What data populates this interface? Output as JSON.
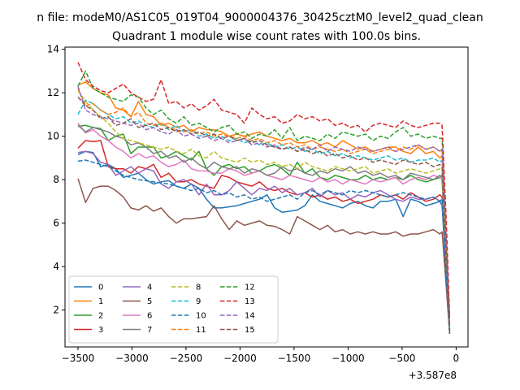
{
  "window_title": "n file: modeM0/AS1C05_019T04_9000004376_30425cztM0_level2_quad_clean",
  "chart_data": {
    "type": "line",
    "title": "Quadrant 1 module wise count rates with 100.0s bins.",
    "xlabel": "",
    "ylabel": "",
    "x_offset_label": "+3.587e8",
    "xlim": [
      -3620,
      110
    ],
    "ylim": [
      0.3,
      14.1
    ],
    "xticks": [
      -3500,
      -3000,
      -2500,
      -2000,
      -1500,
      -1000,
      -500,
      0
    ],
    "xtick_labels": [
      "−3500",
      "−3000",
      "−2500",
      "−2000",
      "−1500",
      "−1000",
      "−500",
      "0"
    ],
    "yticks": [
      2,
      4,
      6,
      8,
      10,
      12,
      14
    ],
    "ytick_labels": [
      "2",
      "4",
      "6",
      "8",
      "10",
      "12",
      "14"
    ],
    "grid": false,
    "legend_position": "lower-left",
    "x": [
      -3500,
      -3430,
      -3360,
      -3290,
      -3220,
      -3150,
      -3080,
      -3010,
      -2940,
      -2870,
      -2800,
      -2730,
      -2660,
      -2590,
      -2520,
      -2450,
      -2380,
      -2310,
      -2240,
      -2170,
      -2100,
      -2030,
      -1960,
      -1890,
      -1820,
      -1750,
      -1680,
      -1610,
      -1540,
      -1470,
      -1400,
      -1330,
      -1260,
      -1190,
      -1120,
      -1050,
      -980,
      -910,
      -840,
      -770,
      -700,
      -630,
      -560,
      -490,
      -420,
      -350,
      -280,
      -210,
      -150,
      -130,
      -90,
      -60
    ],
    "series": [
      {
        "name": "0",
        "color": "#1f77b4",
        "dash": "solid",
        "values": [
          9.15,
          9.3,
          9.25,
          8.6,
          8.7,
          8.5,
          8.1,
          8.2,
          8.3,
          8.0,
          7.8,
          7.9,
          7.95,
          7.7,
          7.6,
          7.8,
          7.6,
          7.1,
          6.7,
          6.7,
          6.75,
          6.8,
          6.9,
          7.0,
          7.1,
          7.3,
          6.7,
          6.5,
          6.55,
          6.6,
          6.8,
          7.3,
          7.0,
          6.9,
          6.8,
          6.7,
          6.9,
          7.0,
          6.8,
          6.7,
          7.0,
          7.0,
          7.1,
          6.3,
          7.1,
          7.0,
          6.8,
          6.9,
          7.0,
          6.8,
          3.5,
          0.9
        ]
      },
      {
        "name": "1",
        "color": "#ff7f0e",
        "dash": "solid",
        "values": [
          12.35,
          12.5,
          12.2,
          12.0,
          11.9,
          11.3,
          11.2,
          10.9,
          11.6,
          11.0,
          10.9,
          10.5,
          10.6,
          10.4,
          10.5,
          10.2,
          10.4,
          10.3,
          10.3,
          10.2,
          10.0,
          10.1,
          10.0,
          10.1,
          10.2,
          10.0,
          9.9,
          9.8,
          9.9,
          9.7,
          9.7,
          9.8,
          9.6,
          9.7,
          9.5,
          9.8,
          9.6,
          9.4,
          9.5,
          9.3,
          9.4,
          9.5,
          9.5,
          9.3,
          9.2,
          9.5,
          9.2,
          9.3,
          9.0,
          9.1,
          5.0,
          1.0
        ]
      },
      {
        "name": "2",
        "color": "#2ca02c",
        "dash": "solid",
        "values": [
          10.45,
          10.5,
          10.4,
          10.35,
          9.8,
          10.0,
          10.1,
          9.2,
          9.5,
          9.5,
          9.5,
          9.0,
          9.1,
          9.3,
          9.1,
          8.9,
          9.3,
          8.5,
          8.2,
          8.6,
          8.7,
          8.5,
          8.6,
          8.3,
          8.4,
          8.6,
          8.7,
          8.5,
          8.2,
          8.8,
          8.3,
          8.5,
          8.1,
          8.0,
          8.2,
          8.1,
          8.0,
          8.0,
          8.2,
          8.0,
          8.1,
          8.0,
          8.1,
          8.0,
          8.2,
          8.0,
          7.9,
          8.0,
          8.1,
          8.2,
          4.0,
          1.0
        ]
      },
      {
        "name": "3",
        "color": "#d62728",
        "dash": "solid",
        "values": [
          9.45,
          9.8,
          9.75,
          9.8,
          8.6,
          8.5,
          8.5,
          8.3,
          8.6,
          8.5,
          8.7,
          8.1,
          8.3,
          7.9,
          7.9,
          8.0,
          7.8,
          7.7,
          7.6,
          8.2,
          8.1,
          7.9,
          7.8,
          7.7,
          7.9,
          7.6,
          7.5,
          7.6,
          7.4,
          7.3,
          7.4,
          7.2,
          7.3,
          7.1,
          7.2,
          7.0,
          7.1,
          6.9,
          7.0,
          7.1,
          7.3,
          7.2,
          7.3,
          7.1,
          7.4,
          7.2,
          7.0,
          7.1,
          7.3,
          7.2,
          3.5,
          1.1
        ]
      },
      {
        "name": "4",
        "color": "#9467bd",
        "dash": "solid",
        "values": [
          9.25,
          9.3,
          9.2,
          8.8,
          8.7,
          8.2,
          8.4,
          8.6,
          8.3,
          8.5,
          8.4,
          7.8,
          7.6,
          7.9,
          8.0,
          7.8,
          7.3,
          7.8,
          7.3,
          7.3,
          7.5,
          7.9,
          7.6,
          7.3,
          7.6,
          7.5,
          7.7,
          7.4,
          7.6,
          7.3,
          7.4,
          7.6,
          7.2,
          7.5,
          7.3,
          7.4,
          7.1,
          7.3,
          7.2,
          7.4,
          7.5,
          7.3,
          7.1,
          7.0,
          7.2,
          7.1,
          7.1,
          7.2,
          7.0,
          7.1,
          3.5,
          1.0
        ]
      },
      {
        "name": "5",
        "color": "#8c564b",
        "dash": "solid",
        "values": [
          8.05,
          6.95,
          7.6,
          7.7,
          7.7,
          7.5,
          7.2,
          6.7,
          6.6,
          6.8,
          6.55,
          6.7,
          6.3,
          6.0,
          6.2,
          6.2,
          6.25,
          6.3,
          6.8,
          6.2,
          5.7,
          6.1,
          5.9,
          6.0,
          6.1,
          5.9,
          5.85,
          5.7,
          5.5,
          6.3,
          6.1,
          5.9,
          5.7,
          5.9,
          5.6,
          5.7,
          5.5,
          5.6,
          5.5,
          5.6,
          5.5,
          5.5,
          5.6,
          5.4,
          5.5,
          5.5,
          5.6,
          5.7,
          5.5,
          5.6,
          3.0,
          0.9
        ]
      },
      {
        "name": "6",
        "color": "#e377c2",
        "dash": "solid",
        "values": [
          10.6,
          10.15,
          10.3,
          10.0,
          9.8,
          9.5,
          9.3,
          9.0,
          9.2,
          9.0,
          9.1,
          8.8,
          8.6,
          8.7,
          8.9,
          8.5,
          8.4,
          8.4,
          8.3,
          8.3,
          8.5,
          8.4,
          8.2,
          8.3,
          8.4,
          8.2,
          8.1,
          8.0,
          8.2,
          8.1,
          8.0,
          7.9,
          8.1,
          7.9,
          8.0,
          7.8,
          8.0,
          7.9,
          7.8,
          8.0,
          7.9,
          8.0,
          8.1,
          7.8,
          8.0,
          8.1,
          8.0,
          8.2,
          8.1,
          8.0,
          4.0,
          1.0
        ]
      },
      {
        "name": "7",
        "color": "#7f7f7f",
        "dash": "solid",
        "values": [
          10.5,
          10.2,
          10.4,
          10.3,
          10.2,
          10.0,
          9.9,
          9.6,
          9.7,
          9.5,
          9.2,
          9.3,
          9.0,
          9.1,
          8.8,
          9.0,
          8.7,
          8.5,
          8.8,
          8.6,
          8.5,
          8.6,
          8.3,
          8.5,
          8.4,
          8.2,
          8.3,
          8.6,
          8.4,
          8.5,
          8.3,
          8.2,
          8.4,
          8.3,
          8.5,
          8.4,
          8.6,
          8.3,
          8.4,
          8.2,
          8.3,
          8.1,
          8.2,
          8.0,
          8.3,
          8.2,
          8.1,
          8.0,
          8.2,
          8.1,
          4.0,
          1.1
        ]
      },
      {
        "name": "8",
        "color": "#bcbd22",
        "dash": "dashed",
        "values": [
          12.1,
          11.6,
          11.2,
          10.9,
          10.6,
          10.2,
          9.9,
          9.8,
          9.7,
          9.6,
          9.5,
          9.4,
          9.5,
          9.3,
          9.2,
          9.4,
          9.1,
          9.0,
          9.3,
          9.0,
          8.9,
          8.8,
          9.0,
          8.8,
          8.9,
          8.7,
          8.8,
          8.6,
          8.7,
          8.5,
          8.8,
          8.6,
          8.5,
          8.4,
          8.6,
          8.5,
          8.4,
          8.5,
          8.6,
          8.3,
          8.4,
          8.5,
          8.3,
          8.4,
          8.5,
          8.4,
          8.3,
          8.4,
          8.5,
          8.4,
          4.5,
          1.2
        ]
      },
      {
        "name": "9",
        "color": "#17becf",
        "dash": "dashed",
        "values": [
          11.0,
          11.65,
          11.5,
          11.2,
          11.0,
          10.8,
          10.9,
          10.6,
          10.7,
          10.5,
          10.4,
          10.6,
          10.3,
          10.5,
          10.2,
          10.3,
          10.0,
          10.1,
          9.9,
          10.0,
          9.8,
          9.9,
          9.7,
          9.8,
          9.6,
          9.7,
          9.5,
          9.6,
          9.4,
          9.5,
          9.3,
          9.4,
          9.2,
          9.3,
          9.1,
          9.2,
          9.0,
          9.1,
          9.0,
          8.9,
          9.0,
          9.1,
          8.9,
          9.0,
          8.8,
          8.9,
          8.9,
          9.0,
          8.8,
          8.9,
          4.5,
          1.2
        ]
      },
      {
        "name": "10",
        "color": "#1f77b4",
        "dash": "dashed",
        "values": [
          8.85,
          8.9,
          8.8,
          8.7,
          8.6,
          8.4,
          8.2,
          8.1,
          8.0,
          7.95,
          7.9,
          7.85,
          7.8,
          7.7,
          7.6,
          7.5,
          7.6,
          7.4,
          7.5,
          7.3,
          7.4,
          7.2,
          7.3,
          7.1,
          7.2,
          7.0,
          7.1,
          7.2,
          7.3,
          7.1,
          7.4,
          7.5,
          7.3,
          7.5,
          7.4,
          7.3,
          7.5,
          7.4,
          7.5,
          7.4,
          7.3,
          7.2,
          7.3,
          7.4,
          7.3,
          7.2,
          7.1,
          7.2,
          7.0,
          7.1,
          3.5,
          1.0
        ]
      },
      {
        "name": "11",
        "color": "#ff7f0e",
        "dash": "dashed",
        "values": [
          12.2,
          11.4,
          11.5,
          11.2,
          11.0,
          11.1,
          11.3,
          10.9,
          11.1,
          10.6,
          10.5,
          10.6,
          10.4,
          10.3,
          10.2,
          10.3,
          10.1,
          10.2,
          10.0,
          10.1,
          10.0,
          9.9,
          10.0,
          9.8,
          9.9,
          9.7,
          9.8,
          9.6,
          9.7,
          9.5,
          9.6,
          9.4,
          9.5,
          9.4,
          9.3,
          9.4,
          9.2,
          9.3,
          9.4,
          9.2,
          9.3,
          9.4,
          9.3,
          9.5,
          9.4,
          9.6,
          9.4,
          9.5,
          9.3,
          9.4,
          5.0,
          1.4
        ]
      },
      {
        "name": "12",
        "color": "#2ca02c",
        "dash": "dashed",
        "values": [
          12.3,
          13.0,
          12.2,
          12.0,
          11.8,
          11.7,
          11.6,
          11.9,
          11.8,
          11.3,
          11.0,
          11.2,
          10.8,
          10.6,
          10.9,
          10.5,
          10.6,
          10.4,
          10.2,
          10.4,
          10.5,
          10.1,
          10.2,
          9.9,
          10.1,
          10.0,
          10.3,
          9.9,
          10.4,
          9.8,
          10.0,
          9.9,
          9.8,
          10.1,
          9.9,
          10.2,
          10.1,
          10.0,
          10.1,
          9.8,
          10.0,
          9.9,
          10.2,
          10.4,
          10.0,
          10.1,
          9.9,
          10.0,
          9.9,
          9.9,
          5.0,
          1.5
        ]
      },
      {
        "name": "13",
        "color": "#d62728",
        "dash": "dashed",
        "values": [
          13.4,
          12.6,
          12.3,
          12.1,
          12.0,
          12.2,
          12.4,
          12.0,
          11.8,
          11.6,
          11.7,
          12.6,
          11.5,
          11.6,
          11.3,
          11.5,
          11.2,
          11.4,
          11.7,
          11.2,
          11.1,
          11.0,
          10.6,
          11.3,
          11.0,
          10.8,
          10.9,
          10.6,
          10.7,
          11.0,
          10.8,
          10.9,
          10.7,
          10.8,
          10.5,
          10.6,
          10.4,
          10.5,
          10.2,
          10.5,
          10.6,
          10.5,
          10.4,
          10.7,
          10.5,
          10.4,
          10.5,
          10.6,
          10.6,
          10.5,
          6.0,
          1.7
        ]
      },
      {
        "name": "14",
        "color": "#9467bd",
        "dash": "dashed",
        "values": [
          12.3,
          11.2,
          11.0,
          10.9,
          10.8,
          10.7,
          10.6,
          10.5,
          10.6,
          10.3,
          10.4,
          10.2,
          10.1,
          10.3,
          10.0,
          10.1,
          9.9,
          10.0,
          9.8,
          9.9,
          9.7,
          9.8,
          9.9,
          9.6,
          9.7,
          9.5,
          9.6,
          9.4,
          9.5,
          9.3,
          9.5,
          9.4,
          9.6,
          9.3,
          9.5,
          9.4,
          9.3,
          9.5,
          9.4,
          9.3,
          9.4,
          9.5,
          9.3,
          9.4,
          9.5,
          9.6,
          9.4,
          9.5,
          9.3,
          9.4,
          5.0,
          1.5
        ]
      },
      {
        "name": "15",
        "color": "#8c564b",
        "dash": "dashed",
        "values": [
          11.8,
          11.4,
          11.2,
          10.8,
          10.9,
          10.5,
          10.6,
          10.8,
          10.4,
          10.5,
          10.6,
          10.3,
          10.4,
          10.2,
          10.3,
          10.1,
          10.2,
          10.0,
          10.1,
          9.9,
          10.0,
          9.8,
          9.9,
          9.7,
          9.8,
          9.6,
          9.5,
          9.4,
          9.5,
          9.3,
          9.4,
          9.2,
          9.3,
          9.1,
          9.2,
          9.0,
          9.1,
          8.9,
          9.0,
          8.8,
          8.9,
          8.8,
          8.7,
          8.9,
          8.8,
          8.7,
          8.8,
          8.6,
          8.7,
          8.6,
          4.5,
          1.3
        ]
      }
    ]
  }
}
